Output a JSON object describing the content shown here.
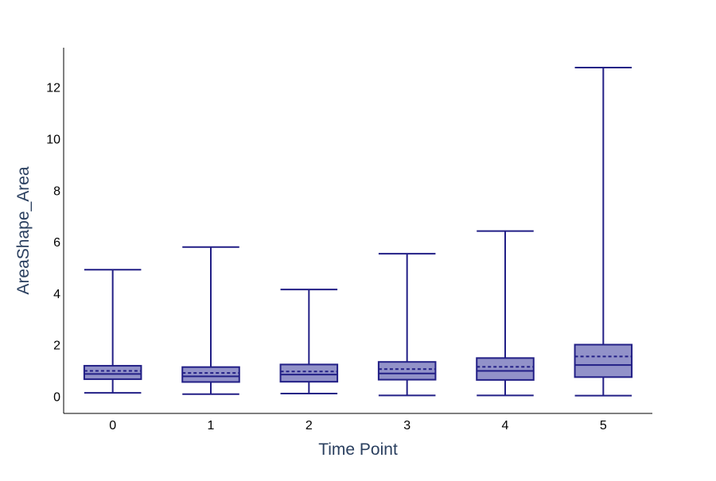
{
  "chart_data": {
    "type": "box",
    "xlabel": "Time Point",
    "ylabel": "AreaShape_Area",
    "categories": [
      "0",
      "1",
      "2",
      "3",
      "4",
      "5"
    ],
    "ylim": [
      -0.65,
      13.55
    ],
    "yticks": [
      0,
      2,
      4,
      6,
      8,
      10,
      12
    ],
    "grid": false,
    "legend": "none",
    "colors": {
      "box_fill": "#9292c9",
      "box_line": "#221f86"
    },
    "boxes": [
      {
        "x": "0",
        "min": 0.15,
        "q1": 0.68,
        "median": 0.88,
        "mean": 1.0,
        "q3": 1.2,
        "max": 4.93
      },
      {
        "x": "1",
        "min": 0.1,
        "q1": 0.57,
        "median": 0.79,
        "mean": 0.92,
        "q3": 1.15,
        "max": 5.81
      },
      {
        "x": "2",
        "min": 0.12,
        "q1": 0.58,
        "median": 0.86,
        "mean": 0.98,
        "q3": 1.25,
        "max": 4.16
      },
      {
        "x": "3",
        "min": 0.05,
        "q1": 0.66,
        "median": 0.9,
        "mean": 1.07,
        "q3": 1.35,
        "max": 5.55
      },
      {
        "x": "4",
        "min": 0.05,
        "q1": 0.65,
        "median": 1.0,
        "mean": 1.16,
        "q3": 1.5,
        "max": 6.43
      },
      {
        "x": "5",
        "min": 0.04,
        "q1": 0.76,
        "median": 1.23,
        "mean": 1.56,
        "q3": 2.02,
        "max": 12.78
      }
    ]
  }
}
